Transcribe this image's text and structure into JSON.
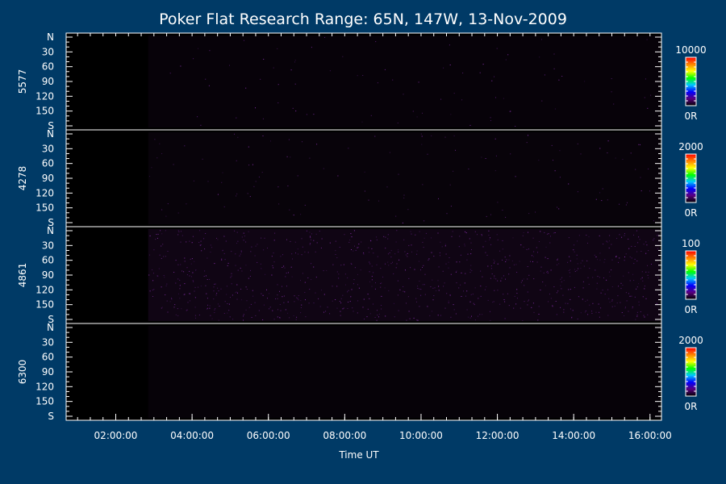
{
  "colors": {
    "background": "#003a66",
    "panel": "#000000",
    "axis": "#ffffff",
    "speckle": "#7a2a9a"
  },
  "chart_data": {
    "type": "heatmap",
    "title": "Poker Flat Research Range: 65N, 147W, 13-Nov-2009",
    "xlabel": "Time UT",
    "x_ticks": [
      "02:00:00",
      "04:00:00",
      "06:00:00",
      "08:00:00",
      "10:00:00",
      "12:00:00",
      "14:00:00",
      "16:00:00"
    ],
    "x_tick_hours": [
      2,
      4,
      6,
      8,
      10,
      12,
      14,
      16
    ],
    "xlim_hours": [
      0.7,
      16.3
    ],
    "data_start_hour": 2.85,
    "y_ticks": [
      "N",
      "30",
      "60",
      "90",
      "120",
      "150",
      "S"
    ],
    "y_tick_values": [
      0,
      30,
      60,
      90,
      120,
      150,
      180
    ],
    "ylim": [
      0,
      180
    ],
    "panels": [
      {
        "label": "5577",
        "colorbar_max": "10000",
        "colorbar_min": "0R",
        "intensity": 0.04
      },
      {
        "label": "4278",
        "colorbar_max": "2000",
        "colorbar_min": "0R",
        "intensity": 0.06
      },
      {
        "label": "4861",
        "colorbar_max": "100",
        "colorbar_min": "0R",
        "intensity": 0.45
      },
      {
        "label": "6300",
        "colorbar_max": "2000",
        "colorbar_min": "0R",
        "intensity": 0.0
      }
    ],
    "colorbar_colors": [
      "#000000",
      "#5a0080",
      "#0000ff",
      "#00c8ff",
      "#00ff00",
      "#ffff00",
      "#ff8000",
      "#ff0000"
    ]
  }
}
